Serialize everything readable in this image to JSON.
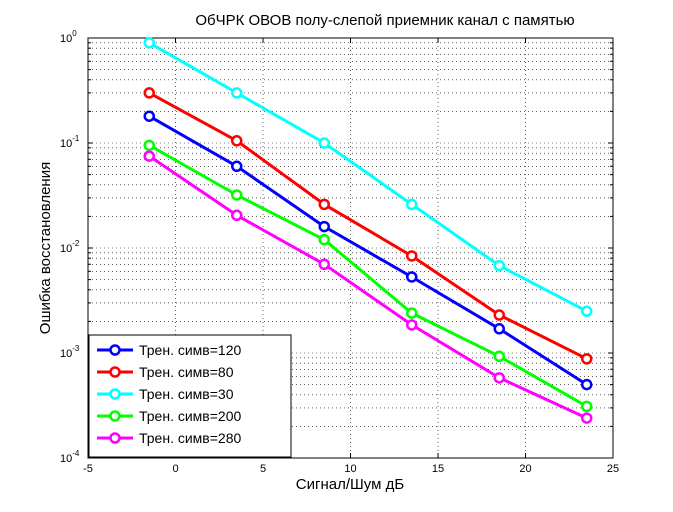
{
  "chart_data": {
    "type": "line",
    "title": "ОбЧРК ОВОВ полу-слепой приемник канал с памятью",
    "xlabel": "Сигнал/Шум дБ",
    "ylabel": "Ошибка восстановления",
    "xlim": [
      -5,
      25
    ],
    "ylim": [
      0.0001,
      1
    ],
    "yscale": "log",
    "grid": true,
    "legend_position": "bottom-left",
    "x_ticks": [
      "-5",
      "0",
      "5",
      "10",
      "15",
      "20",
      "25"
    ],
    "y_ticks": [
      {
        "base": "10",
        "exp": "0"
      },
      {
        "base": "10",
        "exp": "-1"
      },
      {
        "base": "10",
        "exp": "-2"
      },
      {
        "base": "10",
        "exp": "-3"
      },
      {
        "base": "10",
        "exp": "-4"
      }
    ],
    "x": [
      -1.5,
      3.5,
      8.5,
      13.5,
      18.5,
      23.5
    ],
    "series": [
      {
        "name": "Трен. симв=120",
        "color": "#0000ff",
        "values": [
          0.18,
          0.06,
          0.016,
          0.0053,
          0.0017,
          0.0005
        ]
      },
      {
        "name": "Трен. симв=80",
        "color": "#ff0000",
        "values": [
          0.3,
          0.105,
          0.026,
          0.0084,
          0.0023,
          0.00088
        ]
      },
      {
        "name": "Трен. симв=30",
        "color": "#00ffff",
        "values": [
          0.9,
          0.3,
          0.1,
          0.026,
          0.0068,
          0.0025
        ]
      },
      {
        "name": "Трен. симв=200",
        "color": "#00ff00",
        "values": [
          0.095,
          0.032,
          0.012,
          0.0024,
          0.00093,
          0.00031
        ]
      },
      {
        "name": "Трен. симв=280",
        "color": "#ff00ff",
        "values": [
          0.075,
          0.0205,
          0.007,
          0.00185,
          0.00058,
          0.00024
        ]
      }
    ]
  }
}
